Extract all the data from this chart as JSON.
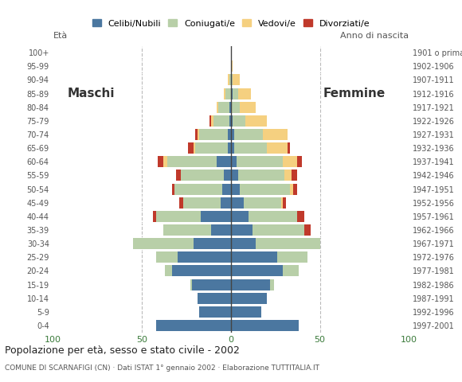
{
  "age_groups": [
    "0-4",
    "5-9",
    "10-14",
    "15-19",
    "20-24",
    "25-29",
    "30-34",
    "35-39",
    "40-44",
    "45-49",
    "50-54",
    "55-59",
    "60-64",
    "65-69",
    "70-74",
    "75-79",
    "80-84",
    "85-89",
    "90-94",
    "95-99",
    "100+"
  ],
  "birth_years": [
    "1997-2001",
    "1992-1996",
    "1987-1991",
    "1982-1986",
    "1977-1981",
    "1972-1976",
    "1967-1971",
    "1962-1966",
    "1957-1961",
    "1952-1956",
    "1947-1951",
    "1942-1946",
    "1937-1941",
    "1932-1936",
    "1927-1931",
    "1922-1926",
    "1917-1921",
    "1912-1916",
    "1907-1911",
    "1902-1906",
    "1901 o prima"
  ],
  "males": {
    "celibi": [
      42,
      18,
      19,
      22,
      33,
      30,
      21,
      11,
      17,
      6,
      5,
      4,
      8,
      2,
      2,
      1,
      1,
      0,
      0,
      0,
      0
    ],
    "coniugati": [
      0,
      0,
      0,
      1,
      4,
      12,
      34,
      27,
      25,
      21,
      27,
      24,
      28,
      18,
      16,
      9,
      6,
      3,
      1,
      0,
      0
    ],
    "vedovi": [
      0,
      0,
      0,
      0,
      0,
      0,
      0,
      0,
      0,
      0,
      0,
      0,
      2,
      1,
      1,
      1,
      1,
      1,
      1,
      0,
      0
    ],
    "divorziati": [
      0,
      0,
      0,
      0,
      0,
      0,
      0,
      0,
      2,
      2,
      1,
      3,
      3,
      3,
      1,
      1,
      0,
      0,
      0,
      0,
      0
    ]
  },
  "females": {
    "nubili": [
      38,
      17,
      20,
      22,
      29,
      26,
      14,
      12,
      10,
      7,
      5,
      4,
      3,
      2,
      2,
      1,
      0,
      1,
      0,
      0,
      0
    ],
    "coniugate": [
      0,
      0,
      0,
      2,
      9,
      17,
      36,
      29,
      27,
      21,
      28,
      26,
      26,
      18,
      16,
      7,
      5,
      3,
      1,
      0,
      0
    ],
    "vedove": [
      0,
      0,
      0,
      0,
      0,
      0,
      0,
      0,
      0,
      1,
      2,
      4,
      8,
      12,
      14,
      12,
      9,
      7,
      4,
      1,
      0
    ],
    "divorziate": [
      0,
      0,
      0,
      0,
      0,
      0,
      0,
      4,
      4,
      2,
      2,
      3,
      3,
      1,
      0,
      0,
      0,
      0,
      0,
      0,
      0
    ]
  },
  "colors": {
    "celibi": "#4b77a0",
    "coniugati": "#b8cfa8",
    "vedovi": "#f5d080",
    "divorziati": "#c0392b"
  },
  "xlim": 100,
  "title": "Popolazione per età, sesso e stato civile - 2002",
  "subtitle": "COMUNE DI SCARNAFIGI (CN) · Dati ISTAT 1° gennaio 2002 · Elaborazione TUTTITALIA.IT",
  "ylabel_left": "Età",
  "ylabel_right": "Anno di nascita",
  "label_maschi": "Maschi",
  "label_femmine": "Femmine",
  "legend_labels": [
    "Celibi/Nubili",
    "Coniugati/e",
    "Vedovi/e",
    "Divorziati/e"
  ]
}
